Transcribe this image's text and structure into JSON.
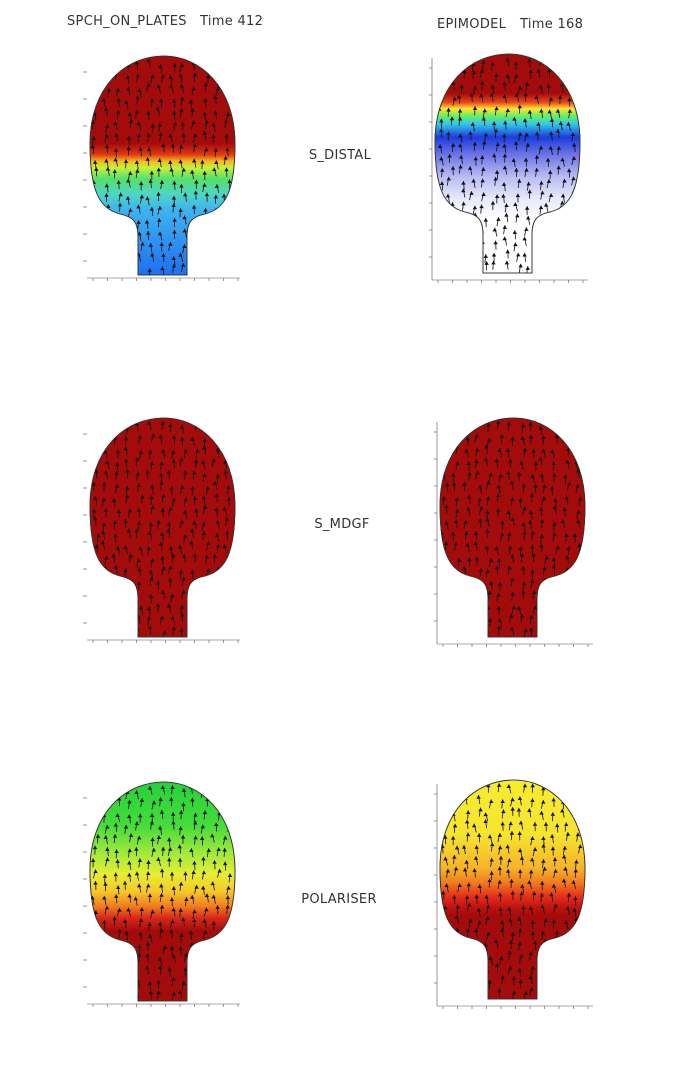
{
  "header": {
    "left_model": "SPCH_ON_PLATES",
    "left_time": "Time 412",
    "right_model": "EPIMODEL",
    "right_time": "Time 168"
  },
  "rows": [
    {
      "label": "S_DISTAL",
      "left": {
        "gradient": [
          [
            "#a40b0b",
            0.0
          ],
          [
            "#a40b0b",
            0.4
          ],
          [
            "#e03a12",
            0.45
          ],
          [
            "#f0b81e",
            0.48
          ],
          [
            "#c8f03a",
            0.51
          ],
          [
            "#55e06a",
            0.56
          ],
          [
            "#4fd6c4",
            0.63
          ],
          [
            "#3fb4ef",
            0.7
          ],
          [
            "#1e6ff0",
            1.0
          ]
        ]
      },
      "right": {
        "gradient": [
          [
            "#a40b0b",
            0.0
          ],
          [
            "#a40b0b",
            0.18
          ],
          [
            "#e6441a",
            0.22
          ],
          [
            "#ffe234",
            0.25
          ],
          [
            "#6ff05a",
            0.28
          ],
          [
            "#31c8e8",
            0.32
          ],
          [
            "#1c3cdc",
            0.38
          ],
          [
            "#6d74e6",
            0.46
          ],
          [
            "#b8bcf2",
            0.56
          ],
          [
            "#e8e9fb",
            0.66
          ],
          [
            "#ffffff",
            0.76
          ],
          [
            "#ffffff",
            1.0
          ]
        ]
      }
    },
    {
      "label": "S_MDGF",
      "left": {
        "gradient": [
          [
            "#a40b0b",
            0.0
          ],
          [
            "#a40b0b",
            1.0
          ]
        ]
      },
      "right": {
        "gradient": [
          [
            "#a40b0b",
            0.0
          ],
          [
            "#a40b0b",
            1.0
          ]
        ]
      }
    },
    {
      "label": "POLARISER",
      "left": {
        "gradient": [
          [
            "#25d23a",
            0.0
          ],
          [
            "#45dc3a",
            0.2
          ],
          [
            "#9ee83c",
            0.32
          ],
          [
            "#e6ee32",
            0.42
          ],
          [
            "#f6c82a",
            0.5
          ],
          [
            "#f07a1e",
            0.57
          ],
          [
            "#d8281a",
            0.62
          ],
          [
            "#a40b0b",
            0.68
          ],
          [
            "#a40b0b",
            1.0
          ]
        ]
      },
      "right": {
        "gradient": [
          [
            "#f6ec32",
            0.0
          ],
          [
            "#f6e42e",
            0.25
          ],
          [
            "#f6b428",
            0.4
          ],
          [
            "#f07a1e",
            0.47
          ],
          [
            "#e6301a",
            0.53
          ],
          [
            "#c01410",
            0.58
          ],
          [
            "#a40b0b",
            0.62
          ],
          [
            "#a40b0b",
            1.0
          ]
        ]
      }
    }
  ]
}
